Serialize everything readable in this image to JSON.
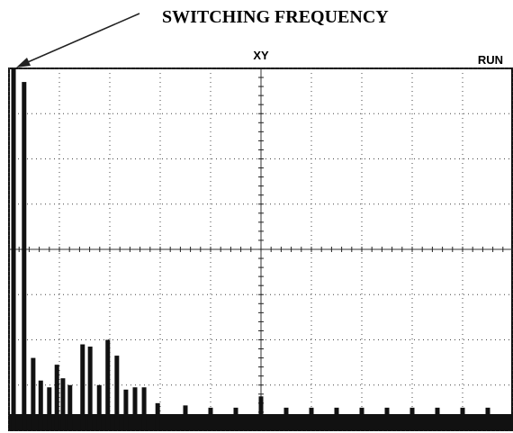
{
  "chart_data": {
    "type": "bar",
    "annotation": "SWITCHING FREQUENCY",
    "mode_label": "XY",
    "status_label": "RUN",
    "x": [
      0.09,
      0.3,
      0.48,
      0.63,
      0.8,
      0.95,
      1.07,
      1.21,
      1.46,
      1.61,
      1.79,
      1.96,
      2.14,
      2.32,
      2.5,
      2.68,
      2.95,
      3.5,
      4.0,
      4.5,
      5.0,
      5.5,
      6.0,
      6.5,
      7.0,
      7.5,
      8.0,
      8.5,
      9.0,
      9.5
    ],
    "values": [
      8,
      7.7,
      1.6,
      1.1,
      0.95,
      1.45,
      1.15,
      1.0,
      1.9,
      1.85,
      1.0,
      2.0,
      1.65,
      0.9,
      0.95,
      0.95,
      0.6,
      0.55,
      0.5,
      0.5,
      0.75,
      0.5,
      0.5,
      0.5,
      0.5,
      0.5,
      0.5,
      0.5,
      0.5,
      0.5
    ],
    "color": "#111111",
    "xlim": [
      0,
      10
    ],
    "ylim": [
      0,
      8
    ],
    "xticks": [
      0,
      1,
      2,
      3,
      4,
      5,
      6,
      7,
      8,
      9,
      10
    ],
    "yticks": [
      0,
      1,
      2,
      3,
      4,
      5,
      6,
      7,
      8
    ],
    "grid": true
  }
}
